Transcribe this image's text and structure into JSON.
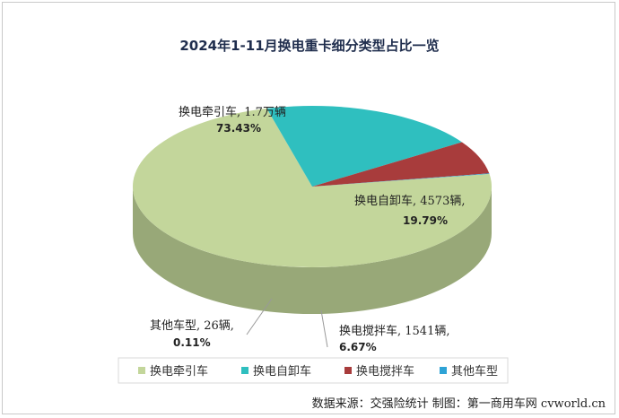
{
  "chart_data": {
    "type": "pie",
    "title": "2024年1-11月换电重卡细分类型占比一览",
    "style": "3d",
    "slices": [
      {
        "name": "换电牵引车",
        "label": "换电牵引车, 1.7万辆",
        "pct_label": "73.43%",
        "value": 73.43,
        "color": "#c3d69b",
        "side_color": "#98a878"
      },
      {
        "name": "换电自卸车",
        "label": "换电自卸车, 4573辆,",
        "pct_label": "19.79%",
        "value": 19.79,
        "color": "#2fbfbf",
        "side_color": "#155050"
      },
      {
        "name": "换电搅拌车",
        "label": "换电搅拌车, 1541辆,",
        "pct_label": "6.67%",
        "value": 6.67,
        "color": "#a83c3c",
        "side_color": "#4a1a1a"
      },
      {
        "name": "其他车型",
        "label": "其他车型, 26辆,",
        "pct_label": "0.11%",
        "value": 0.11,
        "color": "#2ea3d6",
        "side_color": "#1a6a8a"
      }
    ],
    "legend_position": "bottom"
  },
  "source_note": "数据来源：交强险统计 制图：第一商用车网 cvworld.cn"
}
